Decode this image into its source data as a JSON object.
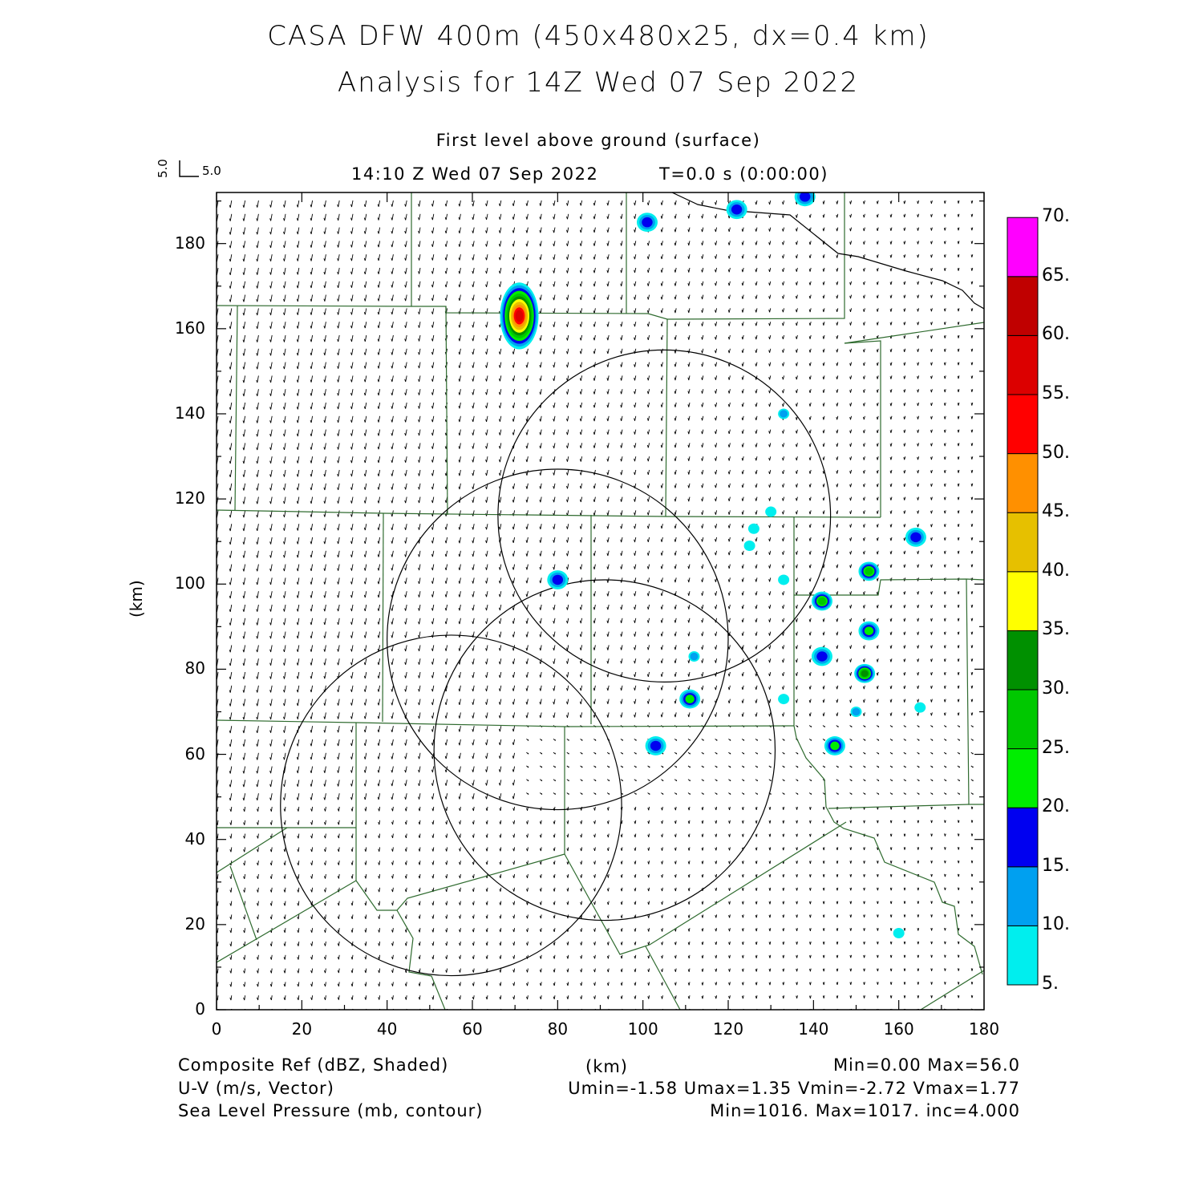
{
  "header": {
    "title_line1": "CASA DFW 400m (450x480x25, dx=0.4 km)",
    "title_line2": "Analysis for 14Z Wed 07 Sep 2022",
    "level": "First level above ground (surface)",
    "valid_time": "14:10 Z Wed 07 Sep 2022",
    "forecast_time": "T=0.0 s (0:00:00)",
    "vector_key_u": "5.0",
    "vector_key_v": "5.0"
  },
  "axes": {
    "xlabel": "(km)",
    "ylabel": "(km)",
    "xlim": [
      0,
      180
    ],
    "ylim": [
      0,
      192
    ],
    "xticks": [
      "0",
      "20",
      "40",
      "60",
      "80",
      "100",
      "120",
      "140",
      "160",
      "180"
    ],
    "yticks": [
      "0",
      "20",
      "40",
      "60",
      "80",
      "100",
      "120",
      "140",
      "160",
      "180"
    ]
  },
  "colorbar": {
    "labels": [
      "5.",
      "10.",
      "15.",
      "20.",
      "25.",
      "30.",
      "35.",
      "40.",
      "45.",
      "50.",
      "55.",
      "60.",
      "65.",
      "70."
    ],
    "colors": [
      "#00eeee",
      "#00a0f0",
      "#0000f0",
      "#00ee00",
      "#00c800",
      "#009000",
      "#ffff00",
      "#e6c000",
      "#ff9000",
      "#ff0000",
      "#dc0000",
      "#c00000",
      "#ff00ff"
    ]
  },
  "footer": {
    "field1_label": "Composite Ref (dBZ, Shaded)",
    "field1_stats": "Min=0.00 Max=56.0",
    "field2_label": "U-V (m/s, Vector)",
    "field2_stats": "Umin=-1.58 Umax=1.35 Vmin=-2.72 Vmax=1.77",
    "field3_label": "Sea Level Pressure (mb, contour)",
    "field3_stats": "Min=1016. Max=1017. inc=4.000",
    "center_label": "(km)"
  },
  "map_data": {
    "radar_rings_km": [
      {
        "cx": 105,
        "cy": 116,
        "r": 39
      },
      {
        "cx": 80,
        "cy": 87,
        "r": 40
      },
      {
        "cx": 91,
        "cy": 61,
        "r": 40
      },
      {
        "cx": 55,
        "cy": 48,
        "r": 40
      }
    ],
    "echoes_km": [
      {
        "x": 71,
        "y": 163,
        "dbz": 56
      },
      {
        "x": 122,
        "y": 188,
        "dbz": 17
      },
      {
        "x": 138,
        "y": 191,
        "dbz": 17
      },
      {
        "x": 101,
        "y": 185,
        "dbz": 16
      },
      {
        "x": 133,
        "y": 140,
        "dbz": 12
      },
      {
        "x": 153,
        "y": 103,
        "dbz": 27
      },
      {
        "x": 142,
        "y": 96,
        "dbz": 27
      },
      {
        "x": 153,
        "y": 89,
        "dbz": 22
      },
      {
        "x": 142,
        "y": 83,
        "dbz": 18
      },
      {
        "x": 152,
        "y": 79,
        "dbz": 30
      },
      {
        "x": 145,
        "y": 62,
        "dbz": 22
      },
      {
        "x": 111,
        "y": 73,
        "dbz": 22
      },
      {
        "x": 103,
        "y": 62,
        "dbz": 17
      },
      {
        "x": 80,
        "y": 101,
        "dbz": 16
      },
      {
        "x": 112,
        "y": 83,
        "dbz": 10
      },
      {
        "x": 126,
        "y": 113,
        "dbz": 9
      },
      {
        "x": 164,
        "y": 111,
        "dbz": 16
      },
      {
        "x": 130,
        "y": 117,
        "dbz": 8
      },
      {
        "x": 125,
        "y": 109,
        "dbz": 7
      },
      {
        "x": 133,
        "y": 101,
        "dbz": 7
      },
      {
        "x": 133,
        "y": 73,
        "dbz": 8
      },
      {
        "x": 150,
        "y": 70,
        "dbz": 10
      },
      {
        "x": 165,
        "y": 71,
        "dbz": 7
      },
      {
        "x": 160,
        "y": 18,
        "dbz": 7
      }
    ]
  }
}
